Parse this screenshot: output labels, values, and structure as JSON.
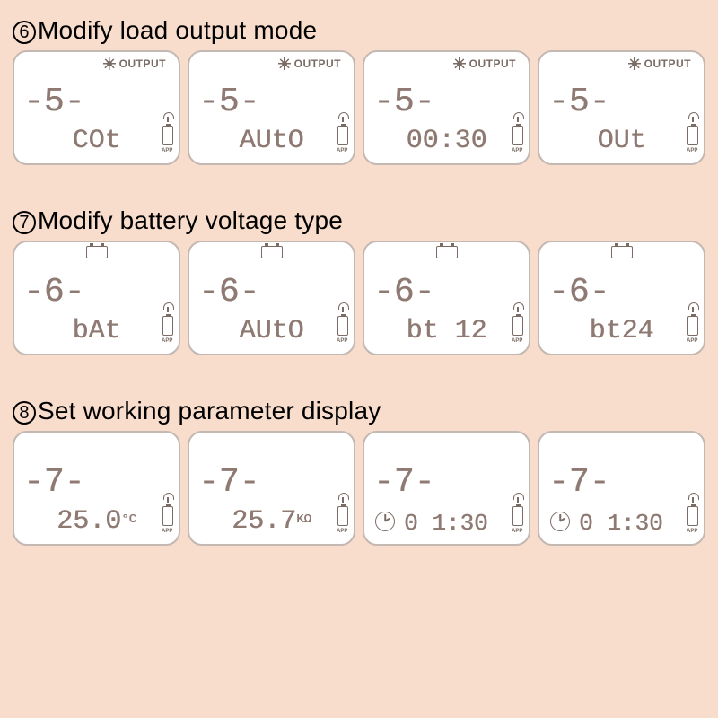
{
  "background_color": "#f9ddcc",
  "lcd_bg": "#ffffff",
  "lcd_border": "#c3b8b2",
  "seg_color": "#8e7a72",
  "title_fontsize": 28,
  "sections": [
    {
      "number": "6",
      "title": "Modify load output mode",
      "screens": [
        {
          "main": "-5-",
          "sub": "COt",
          "top": "output",
          "clock": false
        },
        {
          "main": "-5-",
          "sub": "AUtO",
          "top": "output",
          "clock": false
        },
        {
          "main": "-5-",
          "sub": "00:30",
          "top": "output",
          "clock": false
        },
        {
          "main": "-5-",
          "sub": "OUt",
          "top": "output",
          "clock": false
        }
      ]
    },
    {
      "number": "7",
      "title": "Modify battery voltage type",
      "screens": [
        {
          "main": "-6-",
          "sub": "bAt",
          "top": "battery",
          "clock": false
        },
        {
          "main": "-6-",
          "sub": "AUtO",
          "top": "battery",
          "clock": false
        },
        {
          "main": "-6-",
          "sub": "bt 12",
          "top": "battery",
          "clock": false
        },
        {
          "main": "-6-",
          "sub": "bt24",
          "top": "battery",
          "clock": false
        }
      ]
    },
    {
      "number": "8",
      "title": "Set working parameter display",
      "screens": [
        {
          "main": "-7-",
          "sub": "25.0",
          "unit": "°C",
          "top": "none",
          "clock": false
        },
        {
          "main": "-7-",
          "sub": "25.7",
          "unit": "KΩ",
          "top": "none",
          "clock": false
        },
        {
          "main": "-7-",
          "sub": "0 1:30",
          "top": "none",
          "clock": true,
          "sub_offset": true
        },
        {
          "main": "-7-",
          "sub": "0 1:30",
          "top": "none",
          "clock": true,
          "sub_offset": true
        }
      ]
    }
  ],
  "output_label": "OUTPUT"
}
